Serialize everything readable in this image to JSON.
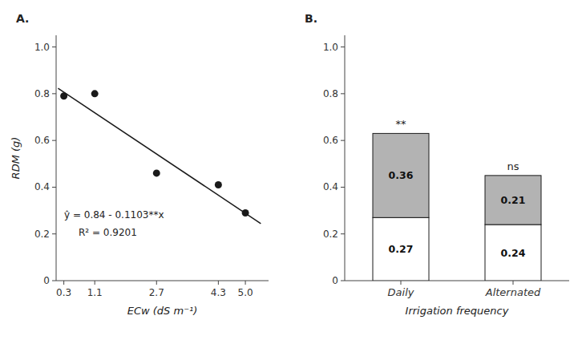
{
  "chart_data": [
    {
      "type": "scatter",
      "title": "A.",
      "x_label": "ECw (dS m⁻¹)",
      "y_label": "RDM (g)",
      "xlim": [
        0.1,
        5.6
      ],
      "xticks": [
        0.3,
        1.1,
        2.7,
        4.3,
        {
          "value": 5.0,
          "label": "5.0"
        }
      ],
      "ylim": [
        0,
        1.05
      ],
      "yticks": [
        0,
        0.2,
        0.4,
        0.6,
        0.8,
        {
          "value": 1.0,
          "label": "1.0"
        }
      ],
      "series": [
        {
          "type": "scatter",
          "color": "#1a1a1a",
          "x": [
            0.3,
            1.1,
            2.7,
            4.3,
            5.0
          ],
          "values": [
            0.79,
            0.8,
            0.46,
            0.41,
            0.29
          ]
        },
        {
          "type": "line",
          "color": "#1a1a1a",
          "x": [
            0.15,
            5.4
          ],
          "values": [
            0.823455,
            0.24438
          ]
        }
      ],
      "annotations": [
        "ŷ = 0.84 - 0.1103**x",
        "R² = 0.9201"
      ]
    },
    {
      "type": "bar",
      "title": "B.",
      "stacked": true,
      "data_labels": true,
      "x_label": "Irrigation frequency",
      "categories": [
        "Daily",
        "Alternated"
      ],
      "ylim": [
        0,
        1.05
      ],
      "yticks": [
        0,
        0.2,
        0.4,
        0.6,
        0.8,
        {
          "value": 1.0,
          "label": "1.0"
        }
      ],
      "series": [
        {
          "color": "#ffffff",
          "values": [
            0.27,
            0.24
          ]
        },
        {
          "color": "#b3b3b3",
          "values": [
            0.36,
            0.21
          ]
        }
      ],
      "annotations": [
        "**",
        "ns"
      ]
    }
  ]
}
